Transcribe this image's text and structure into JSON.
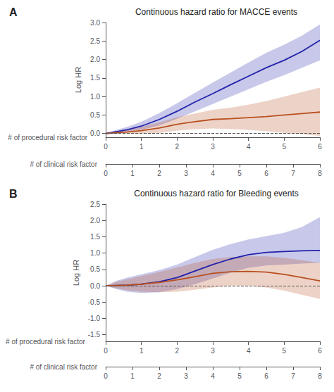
{
  "chart_data": [
    {
      "type": "line",
      "title": "Continuous hazard ratio for MACCE events",
      "panel_label": "A",
      "ylabel": "Log HR",
      "xlabel": "# of procedural risk factor",
      "xlim": [
        0,
        6
      ],
      "xticks": [
        0,
        1,
        2,
        3,
        4,
        5,
        6
      ],
      "x2label": "# of clinical risk factor",
      "x2lim": [
        0,
        8
      ],
      "x2ticks": [
        0,
        1,
        2,
        3,
        4,
        5,
        6,
        7,
        8
      ],
      "ylim": [
        -0.1,
        3.0
      ],
      "yticks": [
        {
          "value": 0,
          "label": "0.0"
        },
        0.5,
        {
          "value": 1,
          "label": "1.0"
        },
        1.5,
        {
          "value": 2,
          "label": "2.0"
        },
        2.5,
        {
          "value": 3,
          "label": "3.0"
        }
      ],
      "grid": false,
      "hline": 0,
      "series": [
        {
          "color": "#2222aa",
          "x": [
            0,
            0.3,
            0.6,
            1.0,
            1.5,
            2.0,
            2.5,
            3.0,
            3.5,
            4.0,
            4.5,
            5.0,
            5.5,
            6.0
          ],
          "values": [
            0.0,
            0.05,
            0.1,
            0.2,
            0.38,
            0.6,
            0.85,
            1.08,
            1.32,
            1.55,
            1.78,
            1.98,
            2.22,
            2.52
          ],
          "lower": [
            0.0,
            0.02,
            0.05,
            0.1,
            0.22,
            0.4,
            0.6,
            0.8,
            1.0,
            1.2,
            1.4,
            1.58,
            1.78,
            1.98
          ],
          "upper": [
            0.0,
            0.1,
            0.18,
            0.32,
            0.55,
            0.82,
            1.1,
            1.38,
            1.65,
            1.92,
            2.18,
            2.4,
            2.65,
            2.95
          ]
        },
        {
          "color": "#b85020",
          "x": [
            0,
            0.3,
            0.6,
            1.0,
            1.5,
            2.0,
            2.5,
            3.0,
            3.5,
            4.0,
            4.5,
            5.0,
            5.5,
            6.0
          ],
          "values": [
            0.0,
            0.02,
            0.04,
            0.08,
            0.15,
            0.25,
            0.32,
            0.38,
            0.4,
            0.43,
            0.46,
            0.5,
            0.54,
            0.58
          ],
          "lower": [
            0.0,
            -0.01,
            -0.01,
            0.0,
            0.02,
            0.08,
            0.12,
            0.14,
            0.12,
            0.1,
            0.06,
            0.02,
            -0.02,
            -0.06
          ],
          "upper": [
            0.0,
            0.05,
            0.1,
            0.18,
            0.3,
            0.44,
            0.54,
            0.64,
            0.7,
            0.78,
            0.88,
            1.0,
            1.12,
            1.24
          ]
        }
      ]
    },
    {
      "type": "line",
      "title": "Continuous hazard ratio for Bleeding events",
      "panel_label": "B",
      "ylabel": "Log HR",
      "xlabel": "# of procedural risk factor",
      "xlim": [
        0,
        6
      ],
      "xticks": [
        0,
        1,
        2,
        3,
        4,
        5,
        6
      ],
      "x2label": "# of clinical risk factor",
      "x2lim": [
        0,
        8
      ],
      "x2ticks": [
        0,
        1,
        2,
        3,
        4,
        5,
        6,
        7,
        8
      ],
      "ylim": [
        -1.7,
        2.5
      ],
      "yticks": [
        -1.5,
        {
          "value": -1,
          "label": "-1.0"
        },
        -0.5,
        {
          "value": 0,
          "label": "0.0"
        },
        0.5,
        {
          "value": 1,
          "label": "1.0"
        },
        1.5,
        {
          "value": 2,
          "label": "2.0"
        },
        2.5
      ],
      "grid": false,
      "hline": 0,
      "series": [
        {
          "color": "#2222aa",
          "x": [
            0,
            0.3,
            0.6,
            1.0,
            1.5,
            2.0,
            2.5,
            3.0,
            3.5,
            4.0,
            4.5,
            5.0,
            5.5,
            6.0
          ],
          "values": [
            0.0,
            0.01,
            0.02,
            0.05,
            0.12,
            0.25,
            0.45,
            0.65,
            0.82,
            0.95,
            1.02,
            1.05,
            1.07,
            1.08
          ],
          "lower": [
            0.0,
            -0.1,
            -0.18,
            -0.22,
            -0.2,
            -0.1,
            0.05,
            0.22,
            0.4,
            0.55,
            0.62,
            0.65,
            0.68,
            0.7
          ],
          "upper": [
            0.0,
            0.15,
            0.25,
            0.35,
            0.48,
            0.65,
            0.88,
            1.1,
            1.28,
            1.42,
            1.52,
            1.62,
            1.8,
            2.1
          ]
        },
        {
          "color": "#b85020",
          "x": [
            0,
            0.3,
            0.6,
            1.0,
            1.5,
            2.0,
            2.5,
            3.0,
            3.5,
            4.0,
            4.5,
            5.0,
            5.5,
            6.0
          ],
          "values": [
            0.0,
            0.01,
            0.02,
            0.05,
            0.1,
            0.18,
            0.28,
            0.38,
            0.43,
            0.44,
            0.42,
            0.35,
            0.25,
            0.15
          ],
          "lower": [
            0.0,
            -0.08,
            -0.14,
            -0.18,
            -0.2,
            -0.18,
            -0.12,
            -0.05,
            0.0,
            0.0,
            -0.05,
            -0.15,
            -0.28,
            -0.4
          ],
          "upper": [
            0.0,
            0.12,
            0.2,
            0.3,
            0.42,
            0.56,
            0.7,
            0.82,
            0.88,
            0.9,
            0.9,
            0.85,
            0.78,
            0.7
          ]
        }
      ]
    }
  ]
}
